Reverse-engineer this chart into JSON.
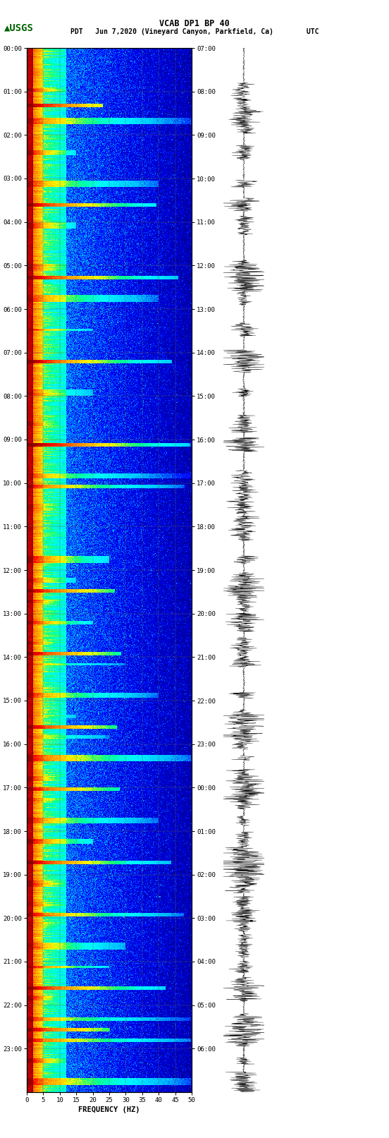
{
  "title_line1": "VCAB DP1 BP 40",
  "title_line2": "PDT   Jun 7,2020 (Vineyard Canyon, Parkfield, Ca)        UTC",
  "xlabel": "FREQUENCY (HZ)",
  "xticks": [
    0,
    5,
    10,
    15,
    20,
    25,
    30,
    35,
    40,
    45,
    50
  ],
  "freq_min": 0,
  "freq_max": 50,
  "pdt_labels": [
    "00:00",
    "01:00",
    "02:00",
    "03:00",
    "04:00",
    "05:00",
    "06:00",
    "07:00",
    "08:00",
    "09:00",
    "10:00",
    "11:00",
    "12:00",
    "13:00",
    "14:00",
    "15:00",
    "16:00",
    "17:00",
    "18:00",
    "19:00",
    "20:00",
    "21:00",
    "22:00",
    "23:00"
  ],
  "utc_labels": [
    "07:00",
    "08:00",
    "09:00",
    "10:00",
    "11:00",
    "12:00",
    "13:00",
    "14:00",
    "15:00",
    "16:00",
    "17:00",
    "18:00",
    "19:00",
    "20:00",
    "21:00",
    "22:00",
    "23:00",
    "00:00",
    "01:00",
    "02:00",
    "03:00",
    "04:00",
    "05:00",
    "06:00"
  ],
  "background_color": "#ffffff",
  "grid_color": "#808080",
  "noise_seed": 42,
  "event_times_frac": [
    0.04,
    0.07,
    0.1,
    0.13,
    0.17,
    0.21,
    0.24,
    0.27,
    0.3,
    0.33,
    0.36,
    0.38,
    0.41,
    0.44,
    0.46,
    0.49,
    0.51,
    0.53,
    0.55,
    0.57,
    0.59,
    0.62,
    0.64,
    0.66,
    0.68,
    0.7,
    0.72,
    0.74,
    0.76,
    0.78,
    0.8,
    0.82,
    0.84,
    0.86,
    0.88,
    0.9,
    0.91,
    0.93,
    0.95,
    0.97,
    0.99
  ]
}
